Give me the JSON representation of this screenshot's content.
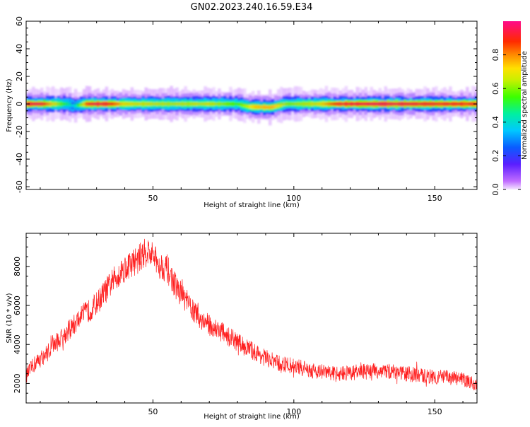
{
  "title": "GN02.2023.240.16.59.E34",
  "chart_data": [
    {
      "type": "heatmap",
      "xlabel": "Height of straight line (km)",
      "ylabel": "Frequency (Hz)",
      "xlim": [
        5,
        165
      ],
      "ylim": [
        -62,
        60
      ],
      "xticks": [
        50,
        100,
        150
      ],
      "yticks": [
        60,
        40,
        20,
        0,
        -20,
        -40,
        -60
      ],
      "colorbar": {
        "label": "Normalized spectral amplitude",
        "range": [
          0,
          1
        ],
        "ticks": [
          "0.0",
          "0.2",
          "0.4",
          "0.6",
          "0.8"
        ]
      },
      "band_center_hz": [
        [
          5,
          0
        ],
        [
          20,
          0
        ],
        [
          22,
          -1.5
        ],
        [
          26,
          0
        ],
        [
          80,
          0
        ],
        [
          84,
          -2
        ],
        [
          92,
          -2.5
        ],
        [
          97,
          0
        ],
        [
          165,
          0
        ]
      ],
      "band_peak_amplitude": [
        [
          5,
          0.92
        ],
        [
          10,
          0.95
        ],
        [
          18,
          0.55
        ],
        [
          22,
          0.35
        ],
        [
          27,
          0.9
        ],
        [
          30,
          0.95
        ],
        [
          35,
          0.9
        ],
        [
          40,
          0.7
        ],
        [
          55,
          0.65
        ],
        [
          70,
          0.68
        ],
        [
          80,
          0.55
        ],
        [
          86,
          0.75
        ],
        [
          92,
          0.78
        ],
        [
          98,
          0.6
        ],
        [
          110,
          0.72
        ],
        [
          116,
          0.92
        ],
        [
          130,
          0.95
        ],
        [
          145,
          0.92
        ],
        [
          165,
          0.9
        ]
      ]
    },
    {
      "type": "line",
      "xlabel": "Height of straight line (km)",
      "ylabel": "SNR (10 * v/v)",
      "xlim": [
        5,
        165
      ],
      "ylim": [
        1000,
        9700
      ],
      "xticks": [
        50,
        100,
        150
      ],
      "yticks": [
        2000,
        4000,
        6000,
        8000
      ],
      "series": [
        {
          "color": "#ff2020",
          "x": [
            5,
            8,
            12,
            15,
            18,
            22,
            25,
            28,
            30,
            33,
            36,
            39,
            42,
            45,
            48,
            50,
            52,
            55,
            58,
            62,
            66,
            70,
            75,
            80,
            85,
            90,
            95,
            100,
            105,
            110,
            115,
            120,
            125,
            130,
            135,
            140,
            145,
            150,
            155,
            160,
            165
          ],
          "y": [
            2400,
            3000,
            3500,
            4000,
            4400,
            5000,
            5500,
            5800,
            6100,
            6700,
            7300,
            7800,
            8100,
            8400,
            8800,
            8500,
            8100,
            7900,
            7000,
            6200,
            5400,
            5000,
            4600,
            4100,
            3700,
            3300,
            3000,
            2900,
            2700,
            2600,
            2500,
            2550,
            2600,
            2650,
            2600,
            2500,
            2400,
            2350,
            2300,
            2200,
            1900
          ]
        }
      ]
    }
  ]
}
